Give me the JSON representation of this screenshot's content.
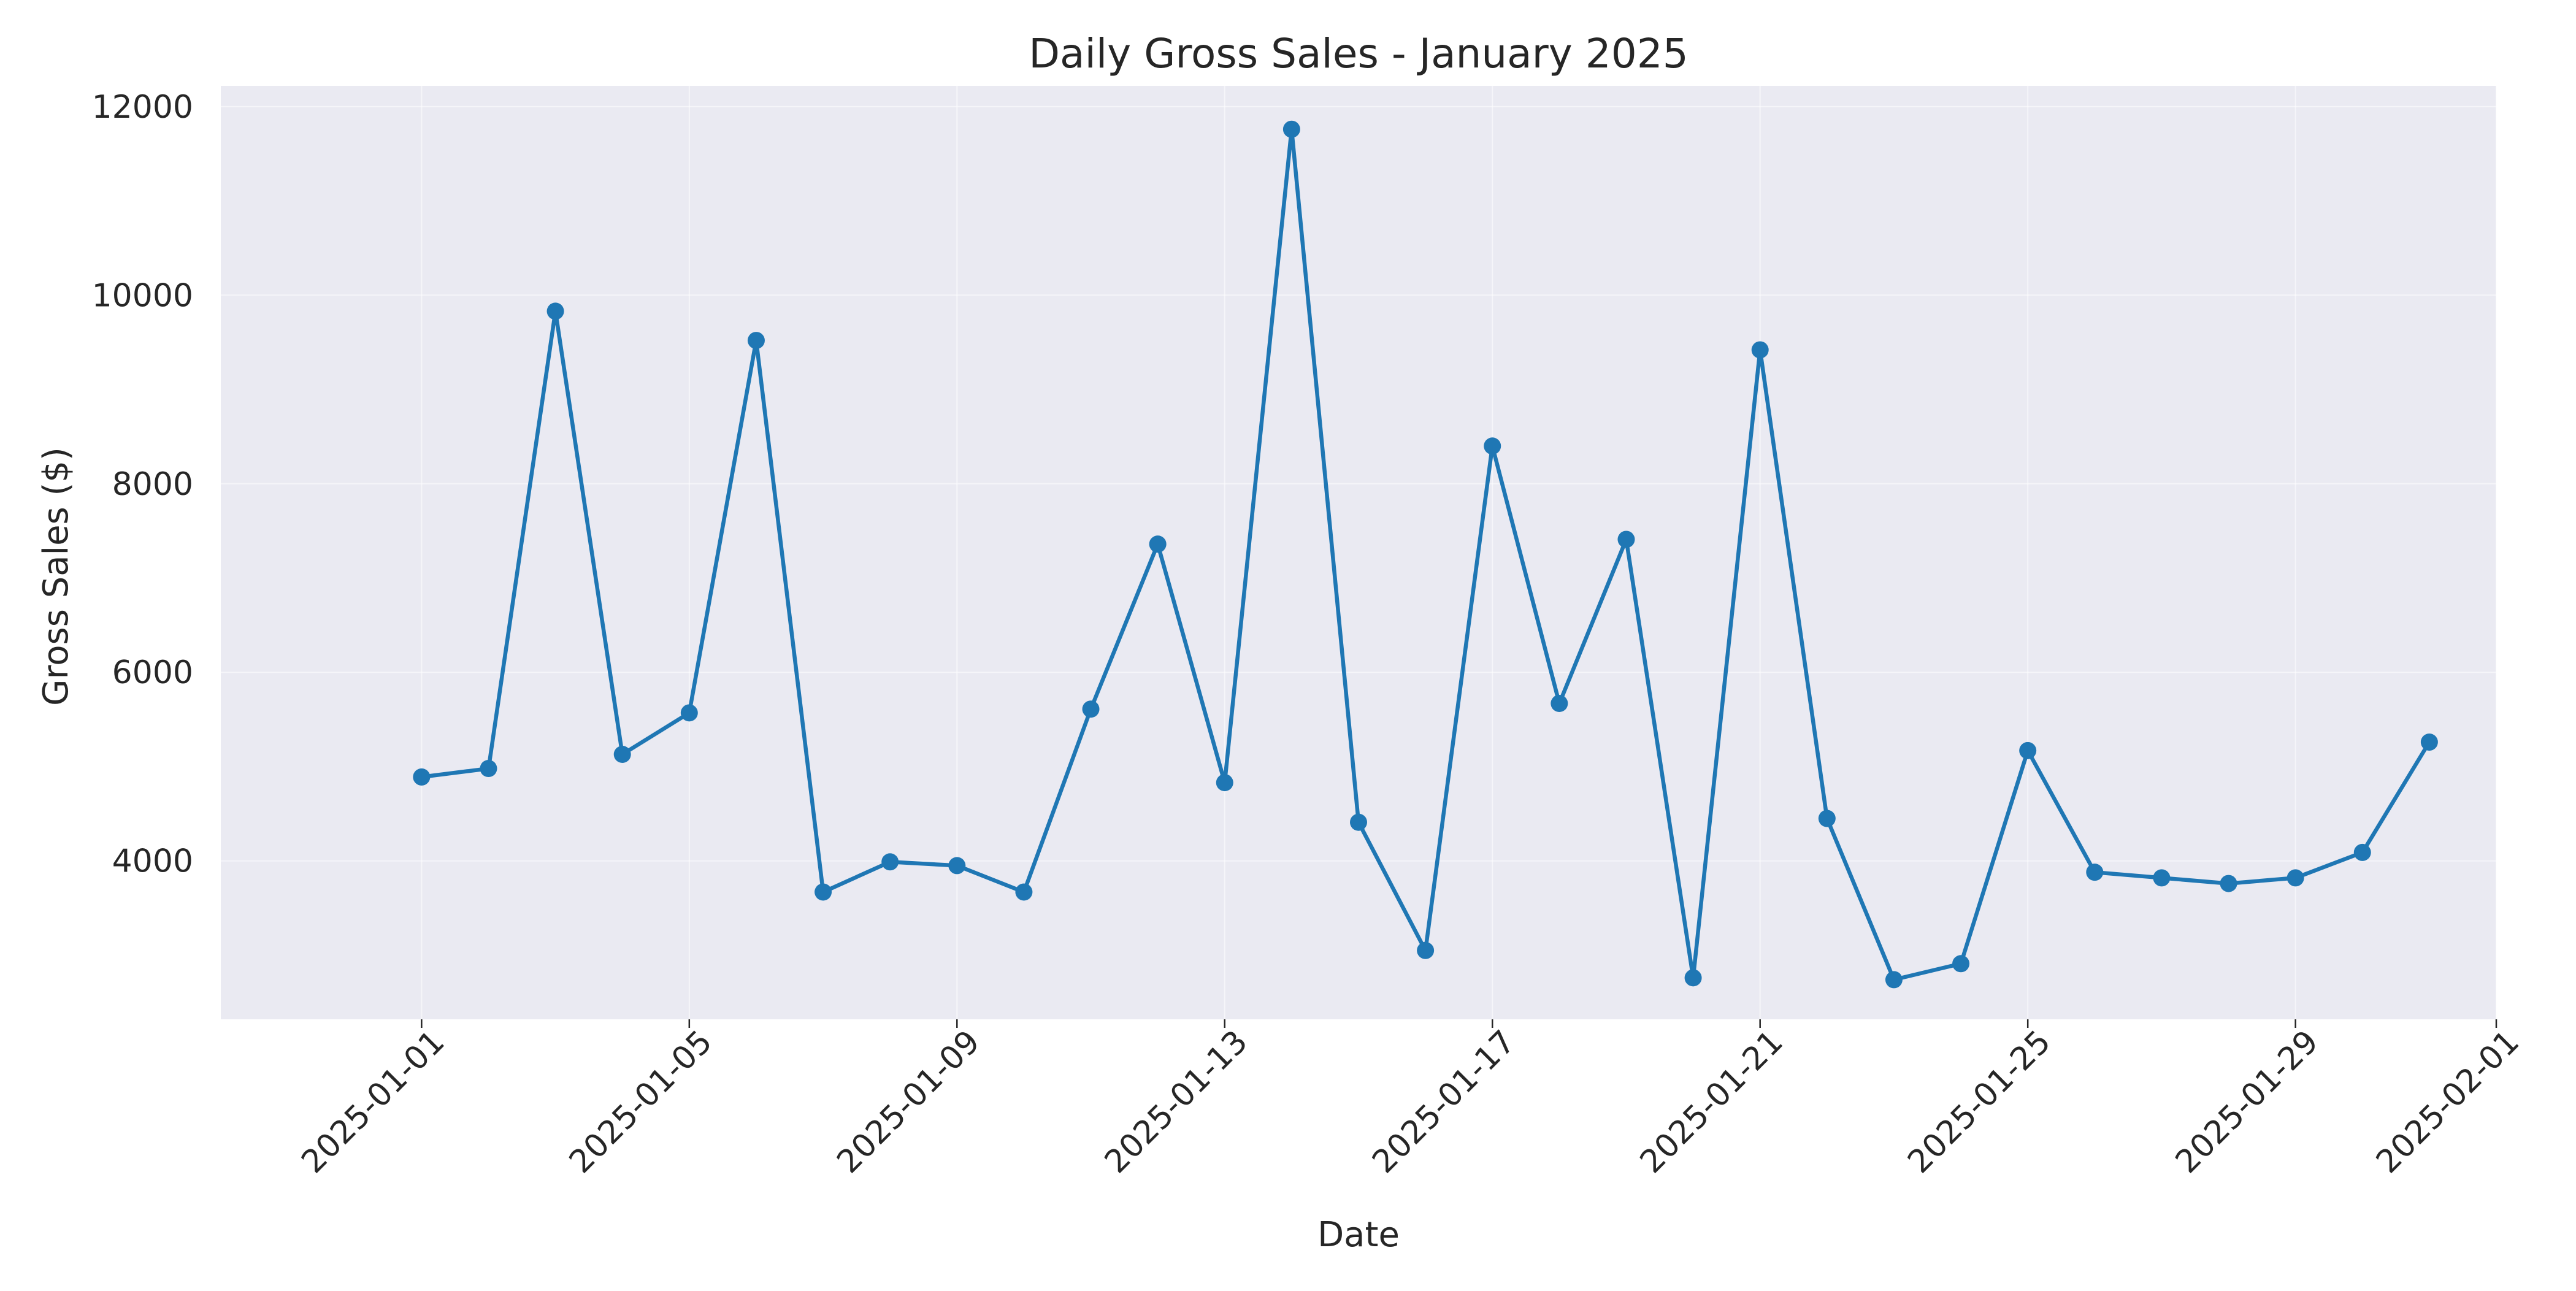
{
  "chart_data": {
    "type": "line",
    "title": "Daily Gross Sales - January 2025",
    "xlabel": "Date",
    "ylabel": "Gross Sales ($)",
    "x_axis_type": "date",
    "x": [
      "2025-01-01",
      "2025-01-02",
      "2025-01-03",
      "2025-01-04",
      "2025-01-05",
      "2025-01-06",
      "2025-01-07",
      "2025-01-08",
      "2025-01-09",
      "2025-01-10",
      "2025-01-11",
      "2025-01-12",
      "2025-01-13",
      "2025-01-14",
      "2025-01-15",
      "2025-01-16",
      "2025-01-17",
      "2025-01-18",
      "2025-01-19",
      "2025-01-20",
      "2025-01-21",
      "2025-01-22",
      "2025-01-23",
      "2025-01-24",
      "2025-01-25",
      "2025-01-26",
      "2025-01-27",
      "2025-01-28",
      "2025-01-29",
      "2025-01-30",
      "2025-01-31"
    ],
    "series": [
      {
        "color": "#1f77b4",
        "marker": "circle",
        "values": [
          4890,
          4980,
          9830,
          5130,
          5570,
          9520,
          3670,
          3990,
          3950,
          3670,
          5610,
          7360,
          4830,
          11760,
          4410,
          3050,
          8400,
          5670,
          7410,
          2760,
          9420,
          4450,
          2740,
          2910,
          5170,
          3880,
          3820,
          3760,
          3820,
          4090,
          5260
        ]
      }
    ],
    "xlim": [
      "2024-12-29",
      "2025-02-01"
    ],
    "ylim": [
      2320,
      12220
    ],
    "x_ticks": [
      "2025-01-01",
      "2025-01-05",
      "2025-01-09",
      "2025-01-13",
      "2025-01-17",
      "2025-01-21",
      "2025-01-25",
      "2025-01-29",
      "2025-02-01"
    ],
    "y_ticks": [
      4000,
      6000,
      8000,
      10000,
      12000
    ],
    "grid": true,
    "legend": "none"
  }
}
